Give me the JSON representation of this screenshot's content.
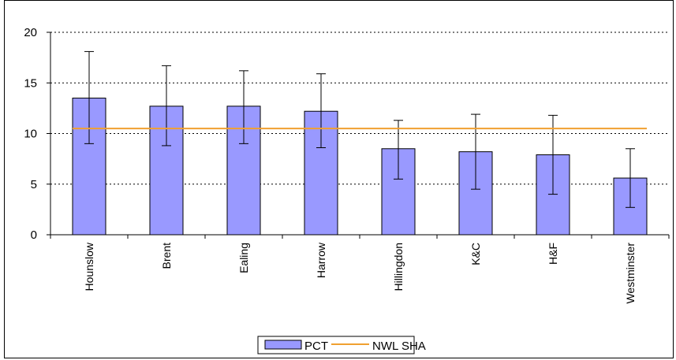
{
  "chart_data": {
    "type": "bar",
    "categories": [
      "Hounslow",
      "Brent",
      "Ealing",
      "Harrow",
      "Hillingdon",
      "K&C",
      "H&F",
      "Westminster"
    ],
    "series": [
      {
        "name": "PCT",
        "type": "bar",
        "values": [
          13.5,
          12.7,
          12.7,
          12.2,
          8.5,
          8.2,
          7.9,
          5.6
        ],
        "error_low": [
          9.0,
          8.8,
          9.0,
          8.6,
          5.5,
          4.5,
          4.0,
          2.7
        ],
        "error_high": [
          18.1,
          16.7,
          16.2,
          15.9,
          11.3,
          11.9,
          11.8,
          8.5
        ],
        "color": "#9999ff"
      },
      {
        "name": "NWL SHA",
        "type": "line",
        "value": 10.5,
        "color": "#f0a030"
      }
    ],
    "ylim": [
      0,
      20
    ],
    "yticks": [
      "0",
      "5",
      "10",
      "15",
      "20"
    ],
    "grid": "horizontal-dotted",
    "legend": "bottom-center",
    "xlabel": "",
    "ylabel": "",
    "title": ""
  }
}
